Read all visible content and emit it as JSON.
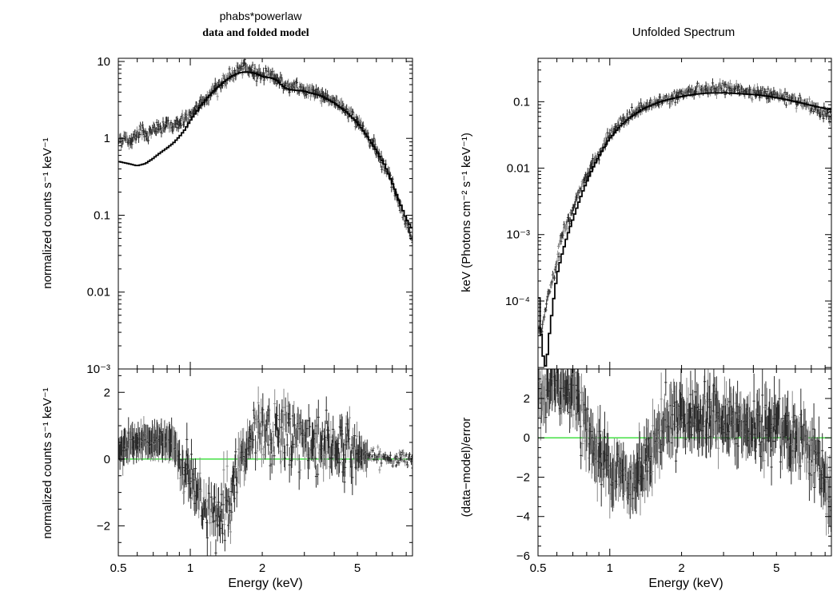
{
  "titles": {
    "left_title": "phabs*powerlaw",
    "left_subtitle": "data and folded model",
    "right_title": "Unfolded Spectrum"
  },
  "colors": {
    "data": "#2a2a2a",
    "data_secondary": "#8a8a8a",
    "model": "#000000",
    "zero_line": "#33dd33",
    "background": "#ffffff"
  },
  "chart_data": [
    {
      "type": "scatter",
      "panel": "left-top",
      "title": "phabs*powerlaw",
      "subtitle": "data and folded model",
      "ylabel": "normalized counts s⁻¹ keV⁻¹",
      "xscale": "log",
      "yscale": "log",
      "xlim": [
        0.5,
        8.5
      ],
      "ylim": [
        0.001,
        11
      ],
      "yticks": [
        {
          "value": 10,
          "label": "10"
        },
        {
          "value": 1,
          "label": "1"
        },
        {
          "value": 0.1,
          "label": "0.1"
        },
        {
          "value": 0.01,
          "label": "0.01"
        },
        {
          "value": 0.001,
          "label": "10⁻³"
        }
      ],
      "model_points": [
        [
          0.5,
          0.5
        ],
        [
          0.55,
          0.47
        ],
        [
          0.6,
          0.44
        ],
        [
          0.65,
          0.47
        ],
        [
          0.7,
          0.55
        ],
        [
          0.75,
          0.65
        ],
        [
          0.8,
          0.75
        ],
        [
          0.85,
          0.87
        ],
        [
          0.9,
          1.05
        ],
        [
          0.95,
          1.3
        ],
        [
          1.0,
          1.7
        ],
        [
          1.1,
          2.6
        ],
        [
          1.2,
          3.6
        ],
        [
          1.3,
          4.6
        ],
        [
          1.4,
          5.6
        ],
        [
          1.5,
          6.5
        ],
        [
          1.6,
          7.1
        ],
        [
          1.7,
          7.3
        ],
        [
          1.8,
          7.2
        ],
        [
          1.9,
          6.9
        ],
        [
          2.0,
          6.4
        ],
        [
          2.1,
          6.2
        ],
        [
          2.2,
          6.1
        ],
        [
          2.3,
          5.7
        ],
        [
          2.4,
          5.0
        ],
        [
          2.5,
          4.5
        ],
        [
          2.6,
          4.3
        ],
        [
          2.8,
          4.2
        ],
        [
          3.0,
          4.1
        ],
        [
          3.5,
          3.6
        ],
        [
          4.0,
          2.9
        ],
        [
          4.5,
          2.2
        ],
        [
          5.0,
          1.6
        ],
        [
          5.5,
          1.05
        ],
        [
          6.0,
          0.7
        ],
        [
          6.5,
          0.45
        ],
        [
          7.0,
          0.26
        ],
        [
          7.5,
          0.15
        ],
        [
          8.0,
          0.09
        ],
        [
          8.5,
          0.065
        ]
      ],
      "data_points": [
        [
          0.5,
          0.95
        ],
        [
          0.53,
          1.0
        ],
        [
          0.56,
          0.9
        ],
        [
          0.6,
          1.2
        ],
        [
          0.63,
          1.3
        ],
        [
          0.66,
          1.1
        ],
        [
          0.7,
          1.25
        ],
        [
          0.73,
          1.4
        ],
        [
          0.76,
          1.3
        ],
        [
          0.8,
          1.5
        ],
        [
          0.84,
          1.45
        ],
        [
          0.88,
          1.55
        ],
        [
          0.92,
          1.7
        ],
        [
          0.96,
          1.8
        ],
        [
          1.0,
          1.9
        ],
        [
          1.05,
          2.3
        ],
        [
          1.1,
          2.8
        ],
        [
          1.2,
          3.7
        ],
        [
          1.3,
          4.8
        ],
        [
          1.4,
          5.6
        ],
        [
          1.5,
          6.8
        ],
        [
          1.6,
          7.8
        ],
        [
          1.7,
          8.3
        ],
        [
          1.8,
          7.6
        ],
        [
          1.9,
          7.2
        ],
        [
          2.0,
          6.8
        ],
        [
          2.1,
          7.0
        ],
        [
          2.2,
          6.6
        ],
        [
          2.3,
          6.0
        ],
        [
          2.4,
          5.3
        ],
        [
          2.5,
          4.9
        ],
        [
          2.6,
          4.6
        ],
        [
          2.8,
          4.5
        ],
        [
          3.0,
          4.3
        ],
        [
          3.3,
          4.0
        ],
        [
          3.6,
          3.6
        ],
        [
          4.0,
          3.0
        ],
        [
          4.5,
          2.3
        ],
        [
          5.0,
          1.7
        ],
        [
          5.5,
          1.1
        ],
        [
          6.0,
          0.72
        ],
        [
          6.5,
          0.43
        ],
        [
          7.0,
          0.27
        ],
        [
          7.5,
          0.14
        ],
        [
          8.0,
          0.08
        ],
        [
          8.4,
          0.05
        ]
      ]
    },
    {
      "type": "scatter",
      "panel": "left-bottom",
      "xlabel": "Energy (keV)",
      "ylabel": "normalized counts s⁻¹ keV⁻¹",
      "xscale": "log",
      "xlim": [
        0.5,
        8.5
      ],
      "ylim": [
        -2.9,
        2.7
      ],
      "xticks": [
        {
          "value": 0.5,
          "label": "0.5"
        },
        {
          "value": 1,
          "label": "1"
        },
        {
          "value": 2,
          "label": "2"
        },
        {
          "value": 5,
          "label": "5"
        }
      ],
      "yticks": [
        {
          "value": 2,
          "label": "2"
        },
        {
          "value": 0,
          "label": "0"
        },
        {
          "value": -2,
          "label": "−2"
        }
      ],
      "zero_line": 0,
      "data_points": [
        [
          0.5,
          0.25
        ],
        [
          0.55,
          0.4
        ],
        [
          0.6,
          0.5
        ],
        [
          0.65,
          0.55
        ],
        [
          0.7,
          0.45
        ],
        [
          0.75,
          0.6
        ],
        [
          0.8,
          0.55
        ],
        [
          0.85,
          0.5
        ],
        [
          0.9,
          -0.1
        ],
        [
          0.95,
          -0.3
        ],
        [
          1.0,
          -0.5
        ],
        [
          1.05,
          -0.8
        ],
        [
          1.1,
          -1.1
        ],
        [
          1.15,
          -1.4
        ],
        [
          1.2,
          -1.6
        ],
        [
          1.25,
          -1.9
        ],
        [
          1.3,
          -1.8
        ],
        [
          1.4,
          -1.3
        ],
        [
          1.5,
          -0.9
        ],
        [
          1.6,
          -0.3
        ],
        [
          1.7,
          0.2
        ],
        [
          1.8,
          0.5
        ],
        [
          1.9,
          0.6
        ],
        [
          2.0,
          0.7
        ],
        [
          2.2,
          0.6
        ],
        [
          2.4,
          0.8
        ],
        [
          2.6,
          0.7
        ],
        [
          2.8,
          0.6
        ],
        [
          3.0,
          0.55
        ],
        [
          3.3,
          0.5
        ],
        [
          3.6,
          0.45
        ],
        [
          4.0,
          0.4
        ],
        [
          4.5,
          0.3
        ],
        [
          5.0,
          0.2
        ],
        [
          5.5,
          0.1
        ],
        [
          6.0,
          0.05
        ],
        [
          6.5,
          0.02
        ],
        [
          7.0,
          0.0
        ],
        [
          7.5,
          -0.02
        ],
        [
          8.0,
          0.0
        ],
        [
          8.4,
          0.0
        ]
      ]
    },
    {
      "type": "scatter",
      "panel": "right-top",
      "title": "Unfolded Spectrum",
      "ylabel": "keV (Photons cm⁻² s⁻¹ keV⁻¹)",
      "xscale": "log",
      "yscale": "log",
      "xlim": [
        0.5,
        8.5
      ],
      "ylim": [
        9.5e-06,
        0.45
      ],
      "yticks": [
        {
          "value": 0.1,
          "label": "0.1"
        },
        {
          "value": 0.01,
          "label": "0.01"
        },
        {
          "value": 0.001,
          "label": "10⁻³"
        },
        {
          "value": 0.0001,
          "label": "10⁻⁴"
        }
      ],
      "model_points": [
        [
          0.5,
          0.00021
        ],
        [
          0.52,
          1.8e-05
        ],
        [
          0.54,
          9.5e-06
        ],
        [
          0.56,
          3.5e-05
        ],
        [
          0.58,
          0.0001
        ],
        [
          0.6,
          0.00024
        ],
        [
          0.63,
          0.0005
        ],
        [
          0.66,
          0.0009
        ],
        [
          0.7,
          0.0017
        ],
        [
          0.74,
          0.003
        ],
        [
          0.78,
          0.005
        ],
        [
          0.82,
          0.0075
        ],
        [
          0.86,
          0.011
        ],
        [
          0.9,
          0.015
        ],
        [
          0.95,
          0.021
        ],
        [
          1.0,
          0.028
        ],
        [
          1.1,
          0.042
        ],
        [
          1.2,
          0.056
        ],
        [
          1.3,
          0.068
        ],
        [
          1.4,
          0.08
        ],
        [
          1.6,
          0.098
        ],
        [
          1.8,
          0.11
        ],
        [
          2.0,
          0.12
        ],
        [
          2.3,
          0.13
        ],
        [
          2.6,
          0.135
        ],
        [
          3.0,
          0.136
        ],
        [
          3.5,
          0.132
        ],
        [
          4.0,
          0.128
        ],
        [
          4.5,
          0.122
        ],
        [
          5.0,
          0.115
        ],
        [
          5.5,
          0.108
        ],
        [
          6.0,
          0.1
        ],
        [
          6.5,
          0.094
        ],
        [
          7.0,
          0.088
        ],
        [
          7.5,
          0.083
        ],
        [
          8.0,
          0.079
        ],
        [
          8.5,
          0.076
        ]
      ],
      "data_points": [
        [
          0.52,
          4e-05
        ],
        [
          0.55,
          0.00012
        ],
        [
          0.58,
          0.00025
        ],
        [
          0.6,
          0.0004
        ],
        [
          0.62,
          0.0009
        ],
        [
          0.65,
          0.0012
        ],
        [
          0.68,
          0.0018
        ],
        [
          0.7,
          0.0025
        ],
        [
          0.73,
          0.0035
        ],
        [
          0.76,
          0.0055
        ],
        [
          0.8,
          0.008
        ],
        [
          0.84,
          0.011
        ],
        [
          0.88,
          0.014
        ],
        [
          0.92,
          0.019
        ],
        [
          0.96,
          0.024
        ],
        [
          1.0,
          0.03
        ],
        [
          1.05,
          0.038
        ],
        [
          1.1,
          0.046
        ],
        [
          1.2,
          0.06
        ],
        [
          1.3,
          0.072
        ],
        [
          1.4,
          0.083
        ],
        [
          1.5,
          0.092
        ],
        [
          1.6,
          0.1
        ],
        [
          1.8,
          0.118
        ],
        [
          2.0,
          0.13
        ],
        [
          2.2,
          0.14
        ],
        [
          2.5,
          0.152
        ],
        [
          2.8,
          0.158
        ],
        [
          3.1,
          0.16
        ],
        [
          3.5,
          0.15
        ],
        [
          4.0,
          0.14
        ],
        [
          4.5,
          0.13
        ],
        [
          5.0,
          0.125
        ],
        [
          5.5,
          0.112
        ],
        [
          6.0,
          0.1
        ],
        [
          6.5,
          0.092
        ],
        [
          7.0,
          0.083
        ],
        [
          7.5,
          0.07
        ],
        [
          8.0,
          0.065
        ],
        [
          8.4,
          0.06
        ]
      ]
    },
    {
      "type": "scatter",
      "panel": "right-bottom",
      "xlabel": "Energy (keV)",
      "ylabel": "(data−model)/error",
      "xscale": "log",
      "xlim": [
        0.5,
        8.5
      ],
      "ylim": [
        -6,
        3.5
      ],
      "xticks": [
        {
          "value": 0.5,
          "label": "0.5"
        },
        {
          "value": 1,
          "label": "1"
        },
        {
          "value": 2,
          "label": "2"
        },
        {
          "value": 5,
          "label": "5"
        }
      ],
      "yticks": [
        {
          "value": 2,
          "label": "2"
        },
        {
          "value": 0,
          "label": "0"
        },
        {
          "value": -2,
          "label": "−2"
        },
        {
          "value": -4,
          "label": "−4"
        },
        {
          "value": -6,
          "label": "−6"
        }
      ],
      "zero_line": 0,
      "data_points": [
        [
          0.52,
          2.0
        ],
        [
          0.55,
          2.5
        ],
        [
          0.58,
          2.8
        ],
        [
          0.62,
          2.3
        ],
        [
          0.66,
          2.6
        ],
        [
          0.7,
          2.4
        ],
        [
          0.75,
          1.6
        ],
        [
          0.8,
          0.4
        ],
        [
          0.85,
          -0.5
        ],
        [
          0.9,
          -1.0
        ],
        [
          0.95,
          -1.2
        ],
        [
          1.0,
          -1.0
        ],
        [
          1.05,
          -1.5
        ],
        [
          1.1,
          -1.9
        ],
        [
          1.15,
          -2.2
        ],
        [
          1.2,
          -2.6
        ],
        [
          1.25,
          -2.3
        ],
        [
          1.3,
          -2.0
        ],
        [
          1.4,
          -1.2
        ],
        [
          1.5,
          -0.5
        ],
        [
          1.6,
          0.2
        ],
        [
          1.7,
          0.8
        ],
        [
          1.8,
          1.0
        ],
        [
          1.9,
          1.2
        ],
        [
          2.0,
          1.1
        ],
        [
          2.2,
          1.2
        ],
        [
          2.4,
          1.0
        ],
        [
          2.6,
          0.9
        ],
        [
          2.8,
          1.2
        ],
        [
          3.0,
          0.8
        ],
        [
          3.3,
          0.7
        ],
        [
          3.6,
          0.5
        ],
        [
          4.0,
          0.4
        ],
        [
          4.5,
          0.3
        ],
        [
          5.0,
          0.6
        ],
        [
          5.5,
          0.3
        ],
        [
          6.0,
          0.0
        ],
        [
          6.5,
          -0.2
        ],
        [
          7.0,
          -0.5
        ],
        [
          7.5,
          -1.2
        ],
        [
          8.0,
          -2.5
        ],
        [
          8.4,
          -3.5
        ]
      ]
    }
  ]
}
